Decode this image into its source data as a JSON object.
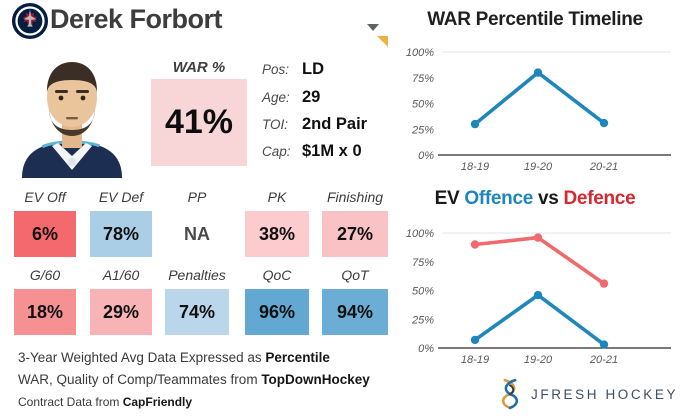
{
  "header": {
    "player_name": "Derek Forbort",
    "team_logo": "winnipeg-jets",
    "dropdown_icon": "chevron-down",
    "note_marker_color": "#efb13f"
  },
  "war": {
    "label": "WAR %",
    "value": "41%",
    "bg": "#f8d5d7"
  },
  "info": {
    "rows": [
      {
        "label": "Pos:",
        "value": "LD"
      },
      {
        "label": "Age:",
        "value": "29"
      },
      {
        "label": "TOI:",
        "value": "2nd Pair"
      },
      {
        "label": "Cap:",
        "value": "$1M x 0"
      }
    ]
  },
  "stats": {
    "row1": [
      {
        "label": "EV Off",
        "value": "6%",
        "bg": "#f4696d"
      },
      {
        "label": "EV Def",
        "value": "78%",
        "bg": "#aacee6"
      },
      {
        "label": "PP",
        "value": "NA",
        "bg": "transparent"
      },
      {
        "label": "PK",
        "value": "38%",
        "bg": "#fbcbcd"
      },
      {
        "label": "Finishing",
        "value": "27%",
        "bg": "#f9c3c6"
      }
    ],
    "row2": [
      {
        "label": "G/60",
        "value": "18%",
        "bg": "#f59093"
      },
      {
        "label": "A1/60",
        "value": "29%",
        "bg": "#f8b3b6"
      },
      {
        "label": "Penalties",
        "value": "74%",
        "bg": "#b9d6ea"
      },
      {
        "label": "QoC",
        "value": "96%",
        "bg": "#62a8d2"
      },
      {
        "label": "QoT",
        "value": "94%",
        "bg": "#6cadd6"
      }
    ]
  },
  "footer": {
    "line1_normal": "3-Year Weighted Avg Data Expressed as ",
    "line1_bold": "Percentile",
    "line2_normal": "WAR, Quality of Comp/Teammates from ",
    "line2_bold": "TopDownHockey",
    "line3_normal": "Contract Data from ",
    "line3_bold": "CapFriendly"
  },
  "branding": {
    "monogram": "jfresh-monogram",
    "logo_text": "JFRESH HOCKEY"
  },
  "chart_data": [
    {
      "type": "line",
      "title": "WAR Percentile Timeline",
      "categories": [
        "18-19",
        "19-20",
        "20-21"
      ],
      "series": [
        {
          "name": "WAR Percentile",
          "color": "#1e86bb",
          "values": [
            30,
            80,
            31
          ]
        }
      ],
      "y_ticks": [
        "0%",
        "25%",
        "50%",
        "75%",
        "100%"
      ],
      "ylim": [
        0,
        100
      ],
      "grid": "line-at-100-only",
      "legend": "none"
    },
    {
      "type": "line",
      "title_parts": [
        {
          "text": "EV ",
          "color": "#1a1a1a"
        },
        {
          "text": "Offence",
          "color": "#1e86bb"
        },
        {
          "text": " vs ",
          "color": "#1a1a1a"
        },
        {
          "text": "Defence",
          "color": "#d7282f"
        }
      ],
      "categories": [
        "18-19",
        "19-20",
        "20-21"
      ],
      "series": [
        {
          "name": "Defence",
          "color": "#f0696e",
          "values": [
            90,
            96,
            56
          ]
        },
        {
          "name": "Offence",
          "color": "#1e86bb",
          "values": [
            7,
            46,
            3
          ]
        }
      ],
      "y_ticks": [
        "0%",
        "25%",
        "50%",
        "75%",
        "100%"
      ],
      "ylim": [
        0,
        100
      ],
      "grid": "line-at-100-only",
      "legend": "encoded-in-title-colors"
    }
  ]
}
